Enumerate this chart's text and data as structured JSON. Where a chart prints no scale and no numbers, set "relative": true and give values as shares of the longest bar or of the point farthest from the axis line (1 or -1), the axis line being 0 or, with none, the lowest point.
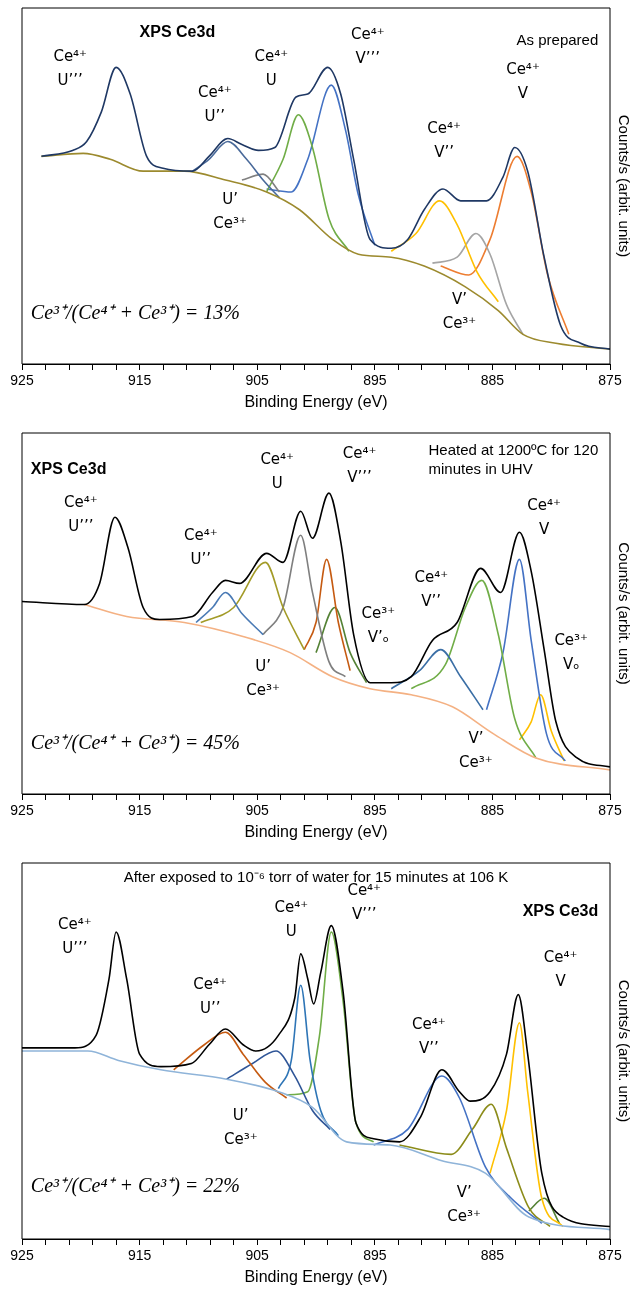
{
  "chart_data": [
    {
      "type": "line",
      "relative": true,
      "title": "As prepared",
      "subtitle": "XPS Ce3d",
      "xlabel": "Binding Energy (eV)",
      "ylabel": "Counts/s (arbit. units)",
      "xlim": [
        925,
        875
      ],
      "xticks": [
        925,
        {
          "value": 923,
          "label": null
        },
        {
          "value": 921,
          "label": null
        },
        {
          "value": 919,
          "label": null
        },
        {
          "value": 917,
          "label": null
        },
        915,
        {
          "value": 913,
          "label": null
        },
        {
          "value": 911,
          "label": null
        },
        {
          "value": 909,
          "label": null
        },
        {
          "value": 907,
          "label": null
        },
        905,
        {
          "value": 903,
          "label": null
        },
        {
          "value": 901,
          "label": null
        },
        {
          "value": 899,
          "label": null
        },
        {
          "value": 897,
          "label": null
        },
        895,
        {
          "value": 893,
          "label": null
        },
        {
          "value": 891,
          "label": null
        },
        {
          "value": 889,
          "label": null
        },
        {
          "value": 887,
          "label": null
        },
        885,
        {
          "value": 883,
          "label": null
        },
        {
          "value": 881,
          "label": null
        },
        {
          "value": 879,
          "label": null
        },
        {
          "value": 877,
          "label": null
        },
        875
      ],
      "tick_labels": "x",
      "grid": false,
      "legend": false,
      "marker": "none",
      "series": [
        {
          "color": "#1f3864",
          "x": [
            923.35,
            920.7,
            919.5,
            918.25,
            917.0,
            915.8,
            914.4,
            913.0,
            910.5,
            909.1,
            907.5,
            906.3,
            904.9,
            903.5,
            901.7,
            900.7,
            899.0,
            897.9,
            896.8,
            895.4,
            893.6,
            892.2,
            890.8,
            889.2,
            887.7,
            885.5,
            884.1,
            883.1,
            882.0,
            880.6,
            879.2,
            877.5,
            875.0
          ],
          "values": [
            0.7,
            0.72,
            0.75,
            0.85,
            1.0,
            0.91,
            0.7,
            0.66,
            0.65,
            0.7,
            0.76,
            0.74,
            0.72,
            0.73,
            0.9,
            0.91,
            1.0,
            0.91,
            0.69,
            0.42,
            0.39,
            0.42,
            0.52,
            0.59,
            0.55,
            0.55,
            0.63,
            0.73,
            0.65,
            0.36,
            0.13,
            0.07,
            0.05
          ]
        },
        {
          "color": "#9c8a2e",
          "x": [
            923.35,
            919.8,
            917.5,
            914.7,
            911.2,
            907.7,
            904.2,
            901.4,
            898.6,
            896.4,
            893.6,
            890.8,
            887.3,
            884.5,
            882.4,
            879.6,
            875.0
          ],
          "values": [
            0.7,
            0.71,
            0.69,
            0.65,
            0.65,
            0.62,
            0.58,
            0.52,
            0.42,
            0.37,
            0.36,
            0.33,
            0.26,
            0.18,
            0.1,
            0.07,
            0.05
          ]
        },
        {
          "color": "#4a6a9a",
          "x": [
            910.5,
            909.1,
            907.5,
            905.9,
            904.5,
            903.1
          ],
          "values": [
            0.65,
            0.69,
            0.75,
            0.69,
            0.62,
            0.56
          ]
        },
        {
          "color": "#808080",
          "x": [
            906.3,
            904.5,
            903.1
          ],
          "values": [
            0.62,
            0.64,
            0.58
          ]
        },
        {
          "color": "#70ad47",
          "x": [
            904.2,
            902.8,
            901.5,
            900.3,
            898.9,
            897.2
          ],
          "values": [
            0.58,
            0.69,
            0.84,
            0.73,
            0.49,
            0.38
          ]
        },
        {
          "color": "#4472c4",
          "x": [
            904.2,
            902.1,
            900.7,
            898.7,
            897.5,
            896.4,
            895.0
          ],
          "values": [
            0.59,
            0.58,
            0.69,
            0.94,
            0.79,
            0.57,
            0.4
          ]
        },
        {
          "color": "#ffc000",
          "x": [
            893.6,
            891.5,
            889.5,
            888.0,
            886.3,
            884.5
          ],
          "values": [
            0.38,
            0.44,
            0.55,
            0.47,
            0.31,
            0.21
          ]
        },
        {
          "color": "#a5a5a5",
          "x": [
            890.1,
            888.0,
            886.4,
            885.2,
            883.8,
            882.4
          ],
          "values": [
            0.34,
            0.36,
            0.44,
            0.37,
            0.2,
            0.1
          ]
        },
        {
          "color": "#ed7d31",
          "x": [
            889.4,
            887.0,
            885.2,
            882.9,
            881.7,
            880.3,
            878.5
          ],
          "values": [
            0.33,
            0.3,
            0.42,
            0.7,
            0.58,
            0.3,
            0.1
          ]
        }
      ],
      "annotations": [
        "Ce⁴⁺\nU’’’",
        "Ce⁴⁺\nU’’",
        "Ce⁴⁺\nU",
        "Ce⁴⁺\nV’’’",
        "U’\nCe³⁺",
        "Ce⁴⁺\nV’’",
        "Ce⁴⁺\nV",
        "V’\nCe³⁺",
        "Ce³⁺/(Ce⁴⁺ + Ce³⁺) = 13%"
      ]
    },
    {
      "type": "line",
      "relative": true,
      "title": "Heated at 1200ºC for 120 minutes in UHV",
      "subtitle": "XPS Ce3d",
      "xlabel": "Binding Energy (eV)",
      "ylabel": "Counts/s (arbit. units)",
      "xlim": [
        925,
        875
      ],
      "xticks": [
        925,
        {
          "value": 923,
          "label": null
        },
        {
          "value": 921,
          "label": null
        },
        {
          "value": 919,
          "label": null
        },
        {
          "value": 917,
          "label": null
        },
        915,
        {
          "value": 913,
          "label": null
        },
        {
          "value": 911,
          "label": null
        },
        {
          "value": 909,
          "label": null
        },
        {
          "value": 907,
          "label": null
        },
        905,
        {
          "value": 903,
          "label": null
        },
        {
          "value": 901,
          "label": null
        },
        {
          "value": 899,
          "label": null
        },
        {
          "value": 897,
          "label": null
        },
        895,
        {
          "value": 893,
          "label": null
        },
        {
          "value": 891,
          "label": null
        },
        {
          "value": 889,
          "label": null
        },
        {
          "value": 887,
          "label": null
        },
        885,
        {
          "value": 883,
          "label": null
        },
        {
          "value": 881,
          "label": null
        },
        {
          "value": 879,
          "label": null
        },
        {
          "value": 877,
          "label": null
        },
        875
      ],
      "tick_labels": "x",
      "grid": false,
      "legend": false,
      "marker": "none",
      "series": [
        {
          "color": "#000000",
          "x": [
            925.0,
            919.7,
            918.4,
            917.1,
            916.0,
            914.7,
            913.3,
            910.5,
            908.8,
            907.7,
            906.5,
            904.2,
            902.8,
            901.3,
            900.3,
            898.9,
            897.9,
            896.8,
            895.4,
            893.6,
            891.9,
            890.1,
            888.0,
            886.0,
            884.3,
            882.7,
            881.7,
            880.6,
            879.6,
            877.8,
            875.0
          ],
          "values": [
            0.64,
            0.63,
            0.7,
            0.92,
            0.82,
            0.62,
            0.58,
            0.59,
            0.67,
            0.71,
            0.7,
            0.8,
            0.77,
            0.94,
            0.85,
            1.0,
            0.84,
            0.53,
            0.37,
            0.37,
            0.39,
            0.51,
            0.57,
            0.75,
            0.67,
            0.87,
            0.74,
            0.48,
            0.24,
            0.12,
            0.09
          ]
        },
        {
          "color": "#f4b183",
          "x": [
            919.7,
            916.1,
            911.2,
            905.9,
            902.2,
            898.6,
            895.4,
            891.9,
            888.4,
            884.9,
            881.3,
            875.0
          ],
          "values": [
            0.63,
            0.59,
            0.57,
            0.52,
            0.47,
            0.39,
            0.35,
            0.33,
            0.29,
            0.2,
            0.12,
            0.08
          ]
        },
        {
          "color": "#4a7ab5",
          "x": [
            910.2,
            908.8,
            907.7,
            906.3,
            904.5
          ],
          "values": [
            0.57,
            0.62,
            0.67,
            0.6,
            0.53
          ]
        },
        {
          "color": "#a39b28",
          "x": [
            909.8,
            907.0,
            904.3,
            902.8,
            901.0
          ],
          "values": [
            0.57,
            0.62,
            0.77,
            0.62,
            0.48
          ]
        },
        {
          "color": "#7f7f7f",
          "x": [
            904.5,
            902.8,
            901.3,
            900.3,
            898.9,
            897.5
          ],
          "values": [
            0.53,
            0.62,
            0.86,
            0.67,
            0.44,
            0.39
          ]
        },
        {
          "color": "#c55a11",
          "x": [
            901.0,
            900.0,
            899.1,
            898.1,
            897.1
          ],
          "values": [
            0.48,
            0.57,
            0.78,
            0.57,
            0.41
          ]
        },
        {
          "color": "#548235",
          "x": [
            900.0,
            898.4,
            897.1,
            895.7
          ],
          "values": [
            0.47,
            0.62,
            0.47,
            0.37
          ]
        },
        {
          "color": "#3a6ea5",
          "x": [
            893.6,
            891.2,
            889.4,
            887.7,
            885.8
          ],
          "values": [
            0.35,
            0.41,
            0.48,
            0.39,
            0.28
          ]
        },
        {
          "color": "#70ad47",
          "x": [
            891.9,
            889.0,
            887.3,
            885.9,
            884.5,
            883.1,
            881.3
          ],
          "values": [
            0.35,
            0.43,
            0.62,
            0.71,
            0.53,
            0.25,
            0.12
          ]
        },
        {
          "color": "#4472c4",
          "x": [
            885.5,
            884.1,
            882.7,
            881.7,
            880.4,
            878.8
          ],
          "values": [
            0.28,
            0.47,
            0.78,
            0.51,
            0.2,
            0.11
          ]
        },
        {
          "color": "#ffc000",
          "x": [
            882.7,
            881.7,
            880.9,
            880.0,
            878.9
          ],
          "values": [
            0.18,
            0.24,
            0.33,
            0.21,
            0.11
          ]
        }
      ],
      "annotations": [
        "Ce⁴⁺\nU’’’",
        "Ce⁴⁺\nU’’",
        "Ce⁴⁺\nU",
        "Ce⁴⁺\nV’’’",
        "Ce³⁺\nV’ₒ",
        "Ce⁴⁺\nV’’",
        "Ce⁴⁺\nV",
        "Ce³⁺\nVₒ",
        "U’\nCe³⁺",
        "V’\nCe³⁺",
        "Ce³⁺/(Ce⁴⁺ + Ce³⁺) = 45%"
      ]
    },
    {
      "type": "line",
      "relative": true,
      "title": "After exposed to 10⁻⁶ torr of water for 15 minutes at 106 K",
      "subtitle": "XPS Ce3d",
      "xlabel": "Binding Energy (eV)",
      "ylabel": "Counts/s (arbit. units)",
      "xlim": [
        925,
        875
      ],
      "xticks": [
        925,
        {
          "value": 923,
          "label": null
        },
        {
          "value": 921,
          "label": null
        },
        {
          "value": 919,
          "label": null
        },
        {
          "value": 917,
          "label": null
        },
        915,
        {
          "value": 913,
          "label": null
        },
        {
          "value": 911,
          "label": null
        },
        {
          "value": 909,
          "label": null
        },
        {
          "value": 907,
          "label": null
        },
        905,
        {
          "value": 903,
          "label": null
        },
        {
          "value": 901,
          "label": null
        },
        {
          "value": 899,
          "label": null
        },
        {
          "value": 897,
          "label": null
        },
        895,
        {
          "value": 893,
          "label": null
        },
        {
          "value": 891,
          "label": null
        },
        {
          "value": 889,
          "label": null
        },
        {
          "value": 887,
          "label": null
        },
        885,
        {
          "value": 883,
          "label": null
        },
        {
          "value": 881,
          "label": null
        },
        {
          "value": 879,
          "label": null
        },
        {
          "value": 877,
          "label": null
        },
        875
      ],
      "tick_labels": "x",
      "grid": false,
      "legend": false,
      "marker": "none",
      "series": [
        {
          "color": "#000000",
          "x": [
            925.0,
            920.5,
            918.7,
            917.6,
            917.0,
            916.1,
            915.0,
            913.2,
            910.6,
            909.1,
            907.7,
            906.2,
            905.1,
            903.2,
            901.8,
            901.3,
            900.7,
            900.2,
            899.6,
            898.7,
            897.7,
            896.6,
            895.1,
            892.9,
            891.1,
            889.3,
            887.8,
            886.9,
            885.2,
            883.8,
            882.8,
            882.0,
            880.8,
            879.0,
            875.0
          ],
          "values": [
            0.61,
            0.61,
            0.65,
            0.83,
            0.98,
            0.83,
            0.59,
            0.55,
            0.56,
            0.62,
            0.67,
            0.62,
            0.6,
            0.65,
            0.77,
            0.91,
            0.83,
            0.75,
            0.85,
            1.0,
            0.79,
            0.37,
            0.32,
            0.31,
            0.39,
            0.54,
            0.47,
            0.44,
            0.47,
            0.59,
            0.78,
            0.59,
            0.21,
            0.07,
            0.04
          ]
        },
        {
          "color": "#8fb4d9",
          "x": [
            925.0,
            919.4,
            916.8,
            913.2,
            907.6,
            903.2,
            900.3,
            897.4,
            893.7,
            889.3,
            885.6,
            881.9,
            875.0
          ],
          "values": [
            0.6,
            0.6,
            0.57,
            0.54,
            0.51,
            0.47,
            0.42,
            0.31,
            0.3,
            0.25,
            0.21,
            0.07,
            0.03
          ]
        },
        {
          "color": "#c55a11",
          "x": [
            912.1,
            909.5,
            907.7,
            906.2,
            904.3,
            902.5
          ],
          "values": [
            0.54,
            0.62,
            0.66,
            0.59,
            0.5,
            0.45
          ]
        },
        {
          "color": "#2f5597",
          "x": [
            907.6,
            905.4,
            903.4,
            901.8,
            900.3,
            898.8
          ],
          "values": [
            0.51,
            0.56,
            0.6,
            0.52,
            0.41,
            0.35
          ]
        },
        {
          "color": "#2e75b6",
          "x": [
            903.2,
            902.1,
            901.3,
            900.5,
            899.6,
            898.1
          ],
          "values": [
            0.48,
            0.57,
            0.81,
            0.57,
            0.41,
            0.33
          ]
        },
        {
          "color": "#70ad47",
          "x": [
            902.5,
            900.7,
            899.7,
            898.7,
            897.7,
            896.6,
            895.1
          ],
          "values": [
            0.46,
            0.47,
            0.65,
            0.98,
            0.76,
            0.37,
            0.31
          ]
        },
        {
          "color": "#4472c4",
          "x": [
            895.1,
            892.2,
            889.3,
            887.8,
            885.6,
            883.4,
            880.8
          ],
          "values": [
            0.3,
            0.35,
            0.52,
            0.45,
            0.23,
            0.13,
            0.05
          ]
        },
        {
          "color": "#8c8c1a",
          "x": [
            892.9,
            888.5,
            886.7,
            885.1,
            883.8,
            881.9,
            880.1
          ],
          "values": [
            0.3,
            0.27,
            0.35,
            0.43,
            0.29,
            0.1,
            0.04
          ]
        },
        {
          "color": "#ffc000",
          "x": [
            885.2,
            883.8,
            882.7,
            882.0,
            880.8,
            879.0
          ],
          "values": [
            0.21,
            0.41,
            0.69,
            0.47,
            0.13,
            0.04
          ]
        },
        {
          "color": "#548235",
          "x": [
            881.9,
            880.6,
            879.3
          ],
          "values": [
            0.09,
            0.13,
            0.05
          ]
        }
      ],
      "annotations": [
        "Ce⁴⁺\nU’’’",
        "Ce⁴⁺\nU’’",
        "Ce⁴⁺\nU",
        "Ce⁴⁺\nV’’’",
        "Ce⁴⁺\nV",
        "Ce⁴⁺\nV’’",
        "U’\nCe³⁺",
        "V’\nCe³⁺",
        "Ce³⁺/(Ce⁴⁺ + Ce³⁺) = 22%"
      ]
    }
  ]
}
